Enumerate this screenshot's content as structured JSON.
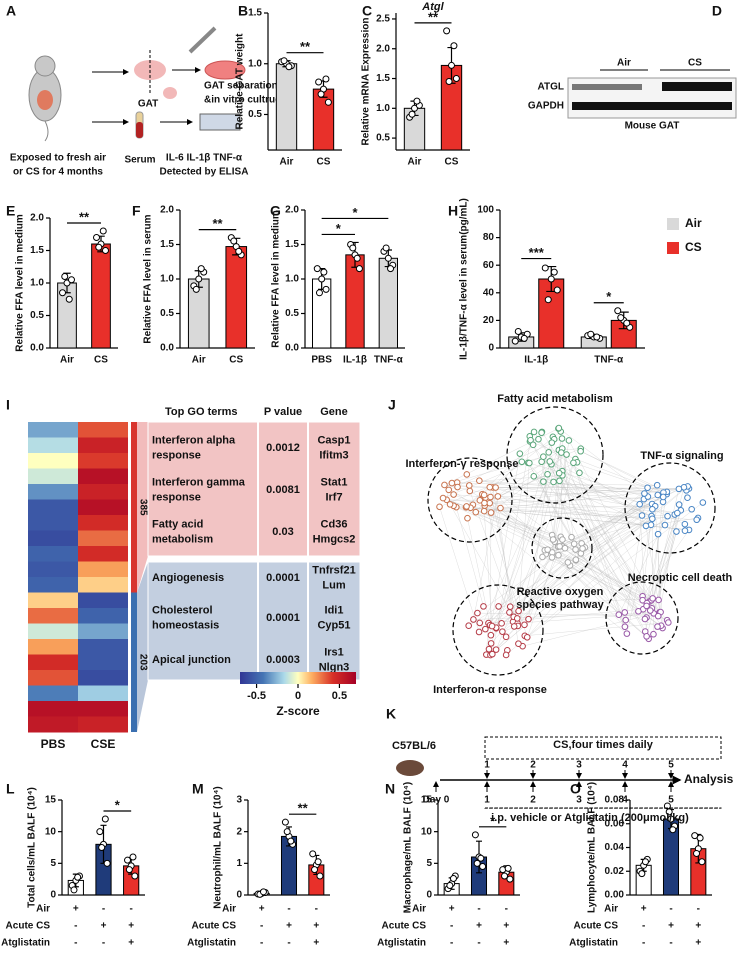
{
  "panel_a": {
    "label": "A",
    "gat": "GAT",
    "culture": [
      "GAT separation",
      "&in vitro cultrue"
    ],
    "exposure": [
      "Exposed to fresh air",
      "or CS for 4 months"
    ],
    "serum": "Serum",
    "elisa": [
      "IL-6 IL-1β TNF-α",
      "Detected by ELISA"
    ]
  },
  "panel_d": {
    "label": "D",
    "groups": [
      "Air",
      "CS"
    ],
    "bands": [
      "ATGL",
      "GAPDH"
    ],
    "caption": "Mouse GAT"
  },
  "panel_i": {
    "label": "I",
    "heatmap": {
      "columns": [
        "PBS",
        "CSE"
      ],
      "zlim": [
        -0.7,
        0.7
      ],
      "rows": [
        [
          -0.3,
          0.35
        ],
        [
          -0.15,
          0.5
        ],
        [
          0.0,
          0.4
        ],
        [
          -0.1,
          0.6
        ],
        [
          -0.35,
          0.5
        ],
        [
          -0.55,
          0.6
        ],
        [
          -0.55,
          0.45
        ],
        [
          -0.6,
          0.3
        ],
        [
          -0.5,
          0.45
        ],
        [
          -0.55,
          0.2
        ],
        [
          -0.5,
          0.1
        ],
        [
          0.1,
          -0.6
        ],
        [
          0.3,
          -0.5
        ],
        [
          -0.1,
          -0.3
        ],
        [
          0.2,
          -0.55
        ],
        [
          0.45,
          -0.55
        ],
        [
          0.35,
          -0.6
        ],
        [
          -0.4,
          -0.2
        ],
        [
          0.6,
          0.6
        ],
        [
          0.55,
          0.5
        ]
      ]
    },
    "clusters": [
      385,
      203
    ],
    "colorbar": {
      "ticks": [
        -0.5,
        0,
        0.5
      ],
      "title": "Z-score"
    },
    "table": {
      "header": [
        "Top GO terms",
        "P value",
        "Gene"
      ],
      "groups": [
        [
          [
            [
              "Interferon alpha",
              "response"
            ],
            0.0012,
            [
              "Casp1",
              "Ifitm3"
            ]
          ],
          [
            [
              "Interferon gamma",
              "response"
            ],
            0.0081,
            [
              "Stat1",
              "Irf7"
            ]
          ],
          [
            [
              "Fatty acid",
              "metabolism"
            ],
            0.03,
            [
              "Cd36",
              "Hmgcs2"
            ]
          ]
        ],
        [
          [
            [
              "Angiogenesis"
            ],
            0.0001,
            [
              "Tnfrsf21",
              "Lum"
            ]
          ],
          [
            [
              "Cholesterol",
              "homeostasis"
            ],
            0.0001,
            [
              "Idi1",
              "Cyp51"
            ]
          ],
          [
            [
              "Apical junction"
            ],
            0.0003,
            [
              "Irs1",
              "Nlgn3"
            ]
          ]
        ]
      ]
    }
  },
  "panel_j": {
    "label": "J",
    "modules": [
      [
        "Fatty acid metabolism"
      ],
      [
        "TNF-α signaling"
      ],
      [
        "Interferon-γ response"
      ],
      [
        "Reactive oxygen",
        "species pathway"
      ],
      [
        "Interferon-α response"
      ],
      [
        "Necroptic cell death"
      ]
    ]
  },
  "panel_k": {
    "label": "K",
    "strain": "C57BL/6",
    "exposure": "CS,four times daily",
    "cs_days": [
      1,
      2,
      3,
      4,
      5
    ],
    "day_label": "Day 0",
    "ip_days": [
      1,
      2,
      3,
      4,
      5
    ],
    "treatment": "i.p. vehicle or Atglistatin (200μmol/kg)",
    "endpoint": "Analysis"
  },
  "chart_data": [
    {
      "type": "bar",
      "label": "B",
      "y_label": "Relative GAT weight",
      "categories": [
        "Air",
        "CS"
      ],
      "values": [
        1.0,
        0.75
      ],
      "errors": [
        0.03,
        0.08
      ],
      "points": [
        [
          1.0,
          1.02,
          0.98,
          1.03,
          0.97
        ],
        [
          0.75,
          0.82,
          0.62,
          0.7,
          0.85
        ]
      ],
      "colors": [
        "#d9d9d9",
        "#e8302a"
      ],
      "ylim": [
        0.15,
        1.5
      ],
      "yticks": [
        0.5,
        {
          "value": 1,
          "label": "1.0"
        },
        1.5
      ],
      "annotations": [
        {
          "text": "**",
          "between": [
            "Air",
            "CS"
          ]
        }
      ]
    },
    {
      "type": "bar",
      "label": "C",
      "title": "Atgl",
      "y_label": "Relative mRNA Expression",
      "categories": [
        "Air",
        "CS"
      ],
      "values": [
        1.0,
        1.72
      ],
      "errors": [
        0.12,
        0.3
      ],
      "points": [
        [
          1.0,
          0.85,
          1.05,
          0.9,
          1.12
        ],
        [
          1.72,
          2.3,
          1.5,
          1.45,
          2.05
        ]
      ],
      "colors": [
        "#d9d9d9",
        "#e8302a"
      ],
      "ylim": [
        0.3,
        2.6
      ],
      "yticks": [
        0.5,
        {
          "value": 1,
          "label": "1.0"
        },
        1.5,
        {
          "value": 2,
          "label": "2.0"
        },
        2.5
      ],
      "annotations": [
        {
          "text": "**",
          "between": [
            "Air",
            "CS"
          ]
        }
      ]
    },
    {
      "type": "bar",
      "label": "E",
      "y_label": "Relative FFA level in medium",
      "categories": [
        "Air",
        "CS"
      ],
      "values": [
        1.0,
        1.6
      ],
      "errors": [
        0.15,
        0.12
      ],
      "points": [
        [
          1.0,
          0.85,
          1.05,
          1.1,
          0.75
        ],
        [
          1.6,
          1.7,
          1.5,
          1.55,
          1.8
        ]
      ],
      "colors": [
        "#d9d9d9",
        "#e8302a"
      ],
      "ylim": [
        0,
        2
      ],
      "yticks": [
        {
          "value": 0,
          "label": "0.0"
        },
        0.5,
        {
          "value": 1,
          "label": "1.0"
        },
        1.5,
        {
          "value": 2,
          "label": "2.0"
        }
      ],
      "annotations": [
        {
          "text": "**",
          "between": [
            "Air",
            "CS"
          ]
        }
      ]
    },
    {
      "type": "bar",
      "label": "F",
      "y_label": "Relative FFA level in serum",
      "categories": [
        "Air",
        "CS"
      ],
      "values": [
        1.0,
        1.47
      ],
      "errors": [
        0.12,
        0.12
      ],
      "points": [
        [
          1.0,
          0.9,
          1.1,
          0.85,
          1.15
        ],
        [
          1.47,
          1.6,
          1.35,
          1.55,
          1.4
        ]
      ],
      "colors": [
        "#d9d9d9",
        "#e8302a"
      ],
      "ylim": [
        0,
        2
      ],
      "yticks": [
        {
          "value": 0,
          "label": "0.0"
        },
        0.5,
        {
          "value": 1,
          "label": "1.0"
        },
        1.5,
        {
          "value": 2,
          "label": "2.0"
        }
      ],
      "annotations": [
        {
          "text": "**",
          "between": [
            "Air",
            "CS"
          ]
        }
      ]
    },
    {
      "type": "bar",
      "label": "G",
      "y_label": "Relative FFA level in medium",
      "categories": [
        "PBS",
        "IL-1β",
        "TNF-α"
      ],
      "values": [
        1.0,
        1.35,
        1.3
      ],
      "errors": [
        0.15,
        0.18,
        0.12
      ],
      "points": [
        [
          1.0,
          1.15,
          0.85,
          0.8,
          1.1
        ],
        [
          1.35,
          1.5,
          1.15,
          1.45,
          1.3
        ],
        [
          1.3,
          1.4,
          1.2,
          1.45,
          1.15
        ]
      ],
      "colors": [
        "#ffffff",
        "#e8302a",
        "#d9d9d9"
      ],
      "ylim": [
        0,
        2
      ],
      "yticks": [
        {
          "value": 0,
          "label": "0.0"
        },
        0.5,
        {
          "value": 1,
          "label": "1.0"
        },
        1.5,
        {
          "value": 2,
          "label": "2.0"
        }
      ],
      "annotations": [
        {
          "text": "*",
          "between": [
            "PBS",
            "IL-1β"
          ]
        },
        {
          "text": "*",
          "between": [
            "PBS",
            "TNF-α"
          ]
        }
      ]
    },
    {
      "type": "bar",
      "label": "H",
      "y_label": "IL-1β/TNF-α level in serum(pg/mL)",
      "categories": [
        "IL-1β",
        "TNF-α"
      ],
      "series": [
        {
          "name": "Air",
          "color": "#d9d9d9",
          "values": [
            8,
            8
          ],
          "errors": [
            3,
            1
          ],
          "points": [
            [
              8,
              5,
              10,
              12,
              7
            ],
            [
              8,
              9,
              7,
              10,
              8
            ]
          ]
        },
        {
          "name": "CS",
          "color": "#e8302a",
          "values": [
            50,
            20
          ],
          "errors": [
            9,
            6
          ],
          "points": [
            [
              50,
              58,
              42,
              35,
              55
            ],
            [
              20,
              27,
              15,
              22,
              18
            ]
          ]
        }
      ],
      "ylim": [
        0,
        100
      ],
      "yticks": [
        0,
        20,
        40,
        60,
        80,
        100
      ],
      "legend": "right",
      "annotations": [
        {
          "text": "***",
          "category": "IL-1β"
        },
        {
          "text": "*",
          "category": "TNF-α"
        }
      ]
    },
    {
      "type": "bar",
      "label": "L",
      "y_label": "Total cells/mL BALF (10⁴)",
      "categories": [
        null,
        null,
        null
      ],
      "values": [
        2.3,
        8,
        4.6
      ],
      "errors": [
        1,
        3,
        1.3
      ],
      "points": [
        [
          2.3,
          1.5,
          3,
          0.8,
          2.8
        ],
        [
          8,
          10,
          5,
          7.5,
          12
        ],
        [
          4.6,
          5.5,
          3,
          4,
          6
        ]
      ],
      "colors": [
        "#ffffff",
        "#1f3b7a",
        "#e8302a"
      ],
      "ylim": [
        0,
        15
      ],
      "yticks": [
        0,
        5,
        10,
        15
      ],
      "annotations": [
        {
          "text": "*",
          "between": [
            null,
            null
          ]
        }
      ],
      "conditions": [
        {
          "name": "Air",
          "marks": [
            "+",
            "-",
            "-"
          ]
        },
        {
          "name": "Acute CS",
          "marks": [
            "-",
            "+",
            "+"
          ]
        },
        {
          "name": "Atglistatin",
          "marks": [
            "-",
            "-",
            "+"
          ]
        }
      ]
    },
    {
      "type": "bar",
      "label": "M",
      "y_label": "Neutrophil/mL BALF (10⁴)",
      "categories": [
        null,
        null,
        null
      ],
      "values": [
        0.05,
        1.85,
        0.95
      ],
      "errors": [
        0.03,
        0.3,
        0.3
      ],
      "points": [
        [
          0.05,
          0.03,
          0.08,
          0.02,
          0.1
        ],
        [
          1.85,
          2.3,
          1.6,
          2,
          1.7
        ],
        [
          0.95,
          1.3,
          0.6,
          0.8,
          1.05
        ]
      ],
      "colors": [
        "#ffffff",
        "#1f3b7a",
        "#e8302a"
      ],
      "ylim": [
        0,
        3
      ],
      "yticks": [
        0,
        1,
        2,
        3
      ],
      "annotations": [
        {
          "text": "**",
          "between": [
            null,
            null
          ]
        }
      ],
      "conditions": [
        {
          "name": "Air",
          "marks": [
            "+",
            "-",
            "-"
          ]
        },
        {
          "name": "Acute CS",
          "marks": [
            "-",
            "+",
            "+"
          ]
        },
        {
          "name": "Atglistatin",
          "marks": [
            "-",
            "-",
            "+"
          ]
        }
      ]
    },
    {
      "type": "bar",
      "label": "N",
      "y_label": "Macrophage/mL BALF (10⁴)",
      "categories": [
        null,
        null,
        null
      ],
      "values": [
        1.8,
        6,
        3.6
      ],
      "errors": [
        0.9,
        2.5,
        1
      ],
      "points": [
        [
          1.8,
          1,
          3,
          1.5,
          2.6
        ],
        [
          6,
          9.5,
          4.5,
          5,
          5.8
        ],
        [
          3.6,
          4,
          2.5,
          3,
          4.2
        ]
      ],
      "colors": [
        "#ffffff",
        "#1f3b7a",
        "#e8302a"
      ],
      "ylim": [
        0,
        15
      ],
      "yticks": [
        0,
        5,
        10,
        15
      ],
      "annotations": [
        {
          "text": "*",
          "between": [
            null,
            null
          ]
        }
      ],
      "conditions": [
        {
          "name": "Air",
          "marks": [
            "+",
            "-",
            "-"
          ]
        },
        {
          "name": "Acute CS",
          "marks": [
            "-",
            "+",
            "+"
          ]
        },
        {
          "name": "Atglistatin",
          "marks": [
            "-",
            "-",
            "+"
          ]
        }
      ]
    },
    {
      "type": "bar",
      "label": "O",
      "y_label": "Lymphocyte/mL BALF (10⁴)",
      "categories": [
        null,
        null,
        null
      ],
      "values": [
        0.025,
        0.064,
        0.039
      ],
      "errors": [
        0.005,
        0.008,
        0.012
      ],
      "points": [
        [
          0.025,
          0.02,
          0.03,
          0.018,
          0.028
        ],
        [
          0.064,
          0.075,
          0.058,
          0.07,
          0.055
        ],
        [
          0.039,
          0.05,
          0.028,
          0.035,
          0.048
        ]
      ],
      "colors": [
        "#ffffff",
        "#1f3b7a",
        "#e8302a"
      ],
      "ylim": [
        0,
        0.08
      ],
      "yticks": [
        {
          "value": 0,
          "label": "0.00"
        },
        0.02,
        0.04,
        0.06,
        0.08
      ],
      "conditions": [
        {
          "name": "Air",
          "marks": [
            "+",
            "-",
            "-"
          ]
        },
        {
          "name": "Acute CS",
          "marks": [
            "-",
            "+",
            "+"
          ]
        },
        {
          "name": "Atglistatin",
          "marks": [
            "-",
            "-",
            "+"
          ]
        }
      ]
    }
  ]
}
